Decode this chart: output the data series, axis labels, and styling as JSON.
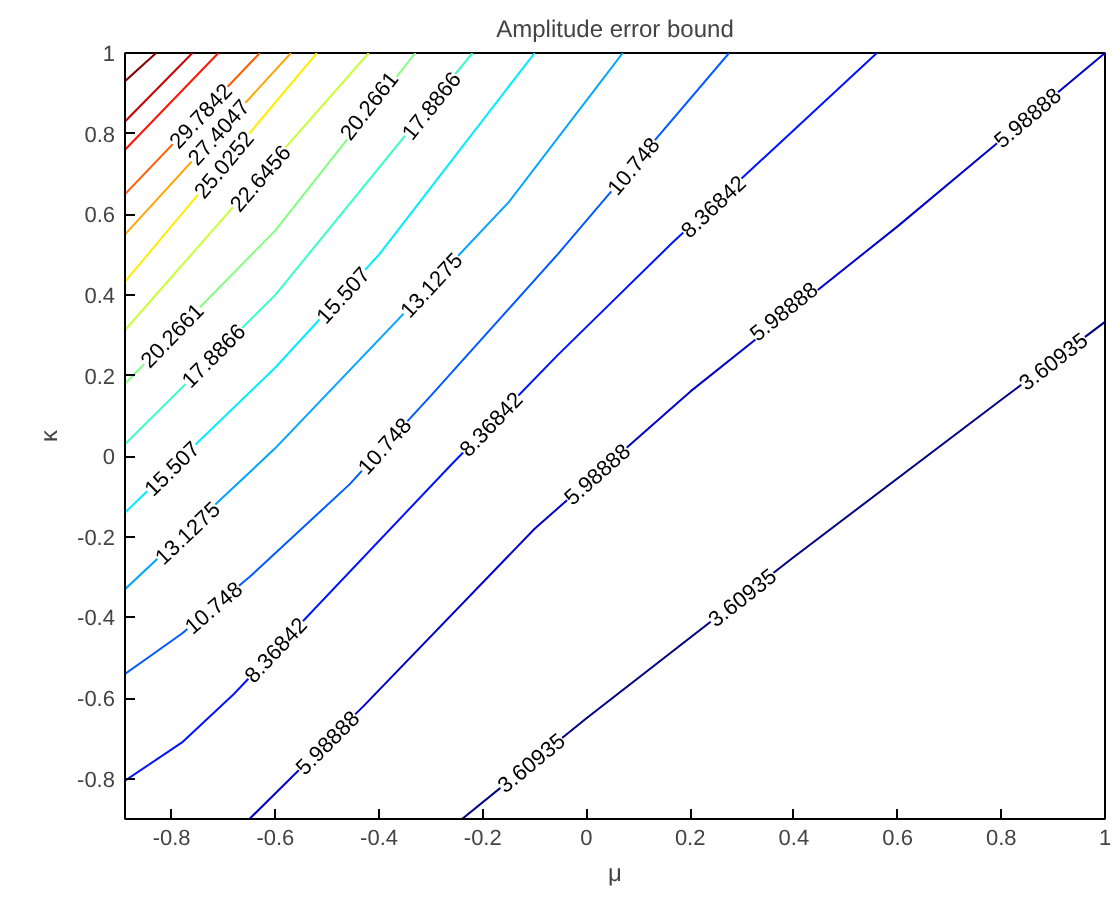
{
  "chart_data": {
    "type": "line",
    "title": "Amplitude error bound",
    "xlabel": "μ",
    "ylabel": "κ",
    "xlim": [
      -0.89,
      1
    ],
    "ylim": [
      -0.9,
      1
    ],
    "xticks": [
      -0.8,
      -0.6,
      -0.4,
      -0.2,
      0,
      0.2,
      0.4,
      0.6,
      0.8,
      1
    ],
    "yticks": [
      -0.8,
      -0.6,
      -0.4,
      -0.2,
      0,
      0.2,
      0.4,
      0.6,
      0.8,
      1
    ],
    "grid": false,
    "marker": "none",
    "line_style": "solid",
    "series": [
      {
        "color": "#000080",
        "x": [
          -0.24,
          0,
          0.4,
          0.8,
          1
        ],
        "values": [
          -0.9,
          -0.65,
          -0.25,
          0.14,
          0.333
        ]
      },
      {
        "color": "#0000c8",
        "x": [
          -0.65,
          -0.43,
          -0.1,
          0.2,
          0.6,
          1
        ],
        "values": [
          -0.9,
          -0.62,
          -0.18,
          0.16,
          0.57,
          1
        ]
      },
      {
        "color": "#0012ff",
        "x": [
          -0.89,
          -0.78,
          -0.68,
          -0.26,
          -0.056,
          0.166,
          0.56
        ],
        "values": [
          -0.805,
          -0.71,
          -0.59,
          -0.02,
          0.25,
          0.53,
          1
        ]
      },
      {
        "color": "#005bff",
        "x": [
          -0.89,
          -0.78,
          -0.65,
          -0.457,
          -0.3,
          -0.056,
          0.275
        ],
        "values": [
          -0.54,
          -0.44,
          -0.3,
          -0.07,
          0.15,
          0.5,
          1
        ]
      },
      {
        "color": "#00a4ff",
        "x": [
          -0.89,
          -0.6,
          -0.37,
          -0.15,
          0.07
        ],
        "values": [
          -0.33,
          0.02,
          0.33,
          0.63,
          1
        ]
      },
      {
        "color": "#00edff",
        "x": [
          -0.89,
          -0.6,
          -0.4,
          -0.1
        ],
        "values": [
          -0.14,
          0.22,
          0.5,
          1
        ]
      },
      {
        "color": "#37ffc8",
        "x": [
          -0.89,
          -0.6,
          -0.22
        ],
        "values": [
          0.03,
          0.4,
          1
        ]
      },
      {
        "color": "#80ff80",
        "x": [
          -0.89,
          -0.6,
          -0.33
        ],
        "values": [
          0.18,
          0.56,
          1
        ]
      },
      {
        "color": "#c8ff37",
        "x": [
          -0.89,
          -0.42
        ],
        "values": [
          0.313,
          1
        ]
      },
      {
        "color": "#ffed00",
        "x": [
          -0.89,
          -0.52
        ],
        "values": [
          0.433,
          1
        ]
      },
      {
        "color": "#ffa400",
        "x": [
          -0.89,
          -0.57
        ],
        "values": [
          0.55,
          1
        ]
      },
      {
        "color": "#ff5b00",
        "x": [
          -0.89,
          -0.63
        ],
        "values": [
          0.65,
          1
        ]
      },
      {
        "color": "#ff1200",
        "x": [
          -0.89,
          -0.71
        ],
        "values": [
          0.76,
          1
        ]
      },
      {
        "color": "#c80000",
        "x": [
          -0.89,
          -0.76
        ],
        "values": [
          0.83,
          1
        ]
      },
      {
        "color": "#800000",
        "x": [
          -0.89,
          -0.83
        ],
        "values": [
          0.93,
          1
        ]
      }
    ],
    "annotations": [
      {
        "text": "3.60935",
        "x": -0.107,
        "y": -0.76
      },
      {
        "text": "3.60935",
        "x": 0.3,
        "y": -0.35
      },
      {
        "text": "3.60935",
        "x": 0.9,
        "y": 0.236
      },
      {
        "text": "5.98888",
        "x": -0.5,
        "y": -0.71
      },
      {
        "text": "5.98888",
        "x": 0.02,
        "y": -0.044
      },
      {
        "text": "5.98888",
        "x": 0.38,
        "y": 0.36
      },
      {
        "text": "5.98888",
        "x": 0.85,
        "y": 0.84
      },
      {
        "text": "8.36842",
        "x": -0.6,
        "y": -0.48
      },
      {
        "text": "8.36842",
        "x": -0.185,
        "y": 0.08
      },
      {
        "text": "8.36842",
        "x": 0.244,
        "y": 0.62
      },
      {
        "text": "10.748",
        "x": -0.72,
        "y": -0.375
      },
      {
        "text": "10.748",
        "x": -0.39,
        "y": 0.026
      },
      {
        "text": "10.748",
        "x": 0.09,
        "y": 0.72
      },
      {
        "text": "13.1275",
        "x": -0.77,
        "y": -0.19
      },
      {
        "text": "13.1275",
        "x": -0.3,
        "y": 0.425
      },
      {
        "text": "15.507",
        "x": -0.8,
        "y": -0.03
      },
      {
        "text": "15.507",
        "x": -0.47,
        "y": 0.4
      },
      {
        "text": "17.8866",
        "x": -0.72,
        "y": 0.25
      },
      {
        "text": "17.8866",
        "x": -0.3,
        "y": 0.87
      },
      {
        "text": "20.2661",
        "x": -0.8,
        "y": 0.3
      },
      {
        "text": "20.2661",
        "x": -0.42,
        "y": 0.87
      },
      {
        "text": "22.6456",
        "x": -0.63,
        "y": 0.69
      },
      {
        "text": "25.0252",
        "x": -0.7,
        "y": 0.724
      },
      {
        "text": "27.4047",
        "x": -0.71,
        "y": 0.804
      },
      {
        "text": "29.7842",
        "x": -0.745,
        "y": 0.845
      }
    ]
  }
}
